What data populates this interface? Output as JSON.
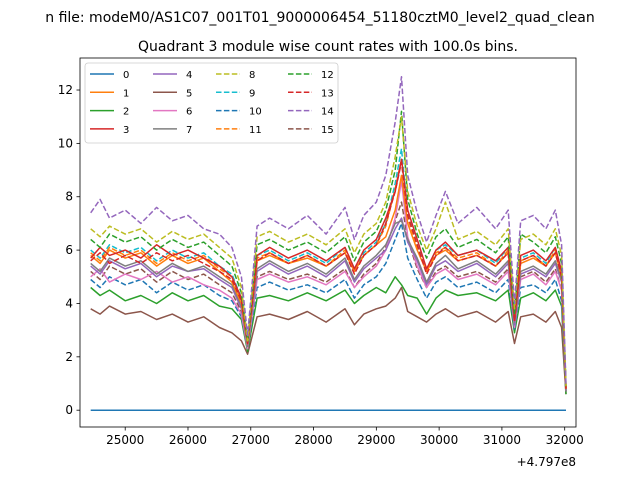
{
  "figure": {
    "suptitle": "n file: modeM0/AS1C07_001T01_9000006454_51180cztM0_level2_quad_clean",
    "title": "Quadrant 3 module wise count rates with 100.0s bins.",
    "offset_label": "+4.797e8"
  },
  "chart_data": {
    "type": "line",
    "title": "Quadrant 3 module wise count rates with 100.0s bins.",
    "xlabel": "",
    "ylabel": "",
    "x_offset": 479700000,
    "xlim": [
      24280,
      32180
    ],
    "ylim": [
      -0.63,
      13.2
    ],
    "xticks": [
      25000,
      26000,
      27000,
      28000,
      29000,
      30000,
      31000,
      32000
    ],
    "yticks": [
      0,
      2,
      4,
      6,
      8,
      10,
      12
    ],
    "grid": false,
    "legend": {
      "placement": "top-left",
      "ncol": 4
    },
    "series_styles": [
      {
        "name": "0",
        "color": "#1f77b4",
        "dash": "solid"
      },
      {
        "name": "1",
        "color": "#ff7f0e",
        "dash": "solid"
      },
      {
        "name": "2",
        "color": "#2ca02c",
        "dash": "solid"
      },
      {
        "name": "3",
        "color": "#d62728",
        "dash": "solid"
      },
      {
        "name": "4",
        "color": "#9467bd",
        "dash": "solid"
      },
      {
        "name": "5",
        "color": "#8c564b",
        "dash": "solid"
      },
      {
        "name": "6",
        "color": "#e377c2",
        "dash": "solid"
      },
      {
        "name": "7",
        "color": "#7f7f7f",
        "dash": "solid"
      },
      {
        "name": "8",
        "color": "#bcbd22",
        "dash": "dashed"
      },
      {
        "name": "9",
        "color": "#17becf",
        "dash": "dashed"
      },
      {
        "name": "10",
        "color": "#1f77b4",
        "dash": "dashed"
      },
      {
        "name": "11",
        "color": "#ff7f0e",
        "dash": "dashed"
      },
      {
        "name": "12",
        "color": "#2ca02c",
        "dash": "dashed"
      },
      {
        "name": "13",
        "color": "#d62728",
        "dash": "dashed"
      },
      {
        "name": "14",
        "color": "#9467bd",
        "dash": "dashed"
      },
      {
        "name": "15",
        "color": "#8c564b",
        "dash": "dashed"
      }
    ],
    "anchor_x": [
      24450,
      24600,
      24750,
      25000,
      25250,
      25500,
      25750,
      26000,
      26250,
      26500,
      26700,
      26850,
      26950,
      27100,
      27300,
      27600,
      27900,
      28200,
      28500,
      28650,
      28800,
      29000,
      29150,
      29300,
      29400,
      29500,
      29650,
      29800,
      29950,
      30100,
      30300,
      30600,
      30900,
      31100,
      31200,
      31300,
      31500,
      31700,
      31850,
      31950,
      32020
    ],
    "series": [
      {
        "name": "0",
        "y": [
          0,
          0,
          0,
          0,
          0,
          0,
          0,
          0,
          0,
          0,
          0,
          0,
          0,
          0,
          0,
          0,
          0,
          0,
          0,
          0,
          0,
          0,
          0,
          0,
          0,
          0,
          0,
          0,
          0,
          0,
          0,
          0,
          0,
          0,
          0,
          0,
          0,
          0,
          0,
          0,
          0
        ]
      },
      {
        "name": "1",
        "y": [
          5.8,
          5.5,
          6.0,
          5.7,
          5.9,
          5.4,
          5.8,
          5.5,
          5.7,
          5.2,
          4.8,
          4.0,
          2.5,
          5.6,
          5.8,
          5.5,
          5.7,
          5.4,
          5.9,
          5.2,
          5.8,
          6.2,
          6.5,
          7.5,
          8.8,
          7.0,
          6.0,
          5.2,
          5.8,
          6.0,
          5.6,
          5.8,
          5.4,
          5.9,
          3.5,
          5.5,
          5.7,
          5.4,
          5.9,
          5.0,
          0.8
        ]
      },
      {
        "name": "2",
        "y": [
          4.6,
          4.3,
          4.5,
          4.1,
          4.3,
          4.0,
          4.4,
          4.1,
          4.3,
          3.9,
          3.8,
          3.4,
          2.2,
          4.2,
          4.3,
          4.1,
          4.4,
          4.1,
          4.5,
          4.0,
          4.3,
          4.6,
          4.4,
          5.0,
          4.7,
          4.3,
          4.2,
          3.6,
          4.2,
          4.5,
          4.3,
          4.4,
          4.1,
          4.5,
          2.9,
          4.2,
          4.4,
          4.1,
          4.5,
          3.9,
          0.6
        ]
      },
      {
        "name": "3",
        "y": [
          5.7,
          6.1,
          5.8,
          6.0,
          5.7,
          6.2,
          5.8,
          6.0,
          5.7,
          5.4,
          5.0,
          4.2,
          2.6,
          5.8,
          6.1,
          5.7,
          6.0,
          5.6,
          6.1,
          5.3,
          6.0,
          6.4,
          7.2,
          8.2,
          9.4,
          7.5,
          6.4,
          5.3,
          6.0,
          6.3,
          5.8,
          6.0,
          5.6,
          6.1,
          3.4,
          5.8,
          6.0,
          5.6,
          6.1,
          5.2,
          0.8
        ]
      },
      {
        "name": "4",
        "y": [
          5.4,
          5.1,
          5.6,
          5.3,
          5.5,
          5.0,
          5.4,
          5.2,
          5.3,
          4.9,
          4.6,
          3.8,
          2.4,
          5.2,
          5.5,
          5.1,
          5.4,
          5.0,
          5.6,
          4.8,
          5.3,
          5.7,
          6.0,
          6.8,
          7.2,
          6.3,
          5.6,
          4.7,
          5.4,
          5.6,
          5.2,
          5.5,
          5.0,
          5.5,
          3.2,
          5.1,
          5.3,
          5.0,
          5.5,
          4.8,
          0.7
        ]
      },
      {
        "name": "5",
        "y": [
          3.8,
          3.6,
          3.9,
          3.6,
          3.7,
          3.4,
          3.6,
          3.3,
          3.5,
          3.1,
          2.9,
          2.6,
          2.1,
          3.5,
          3.6,
          3.4,
          3.7,
          3.3,
          3.8,
          3.2,
          3.6,
          3.8,
          3.9,
          4.2,
          4.6,
          3.7,
          3.5,
          3.3,
          3.6,
          3.8,
          3.5,
          3.7,
          3.3,
          3.7,
          2.5,
          3.5,
          3.6,
          3.3,
          3.7,
          3.1,
          0.6
        ]
      },
      {
        "name": "6",
        "y": [
          5.0,
          5.3,
          4.8,
          5.1,
          4.9,
          5.2,
          4.8,
          5.0,
          4.7,
          4.5,
          4.2,
          3.6,
          2.3,
          4.9,
          5.1,
          4.8,
          5.0,
          4.7,
          5.2,
          4.6,
          5.0,
          5.4,
          6.0,
          7.2,
          8.6,
          6.5,
          5.4,
          4.6,
          5.1,
          5.3,
          4.9,
          5.1,
          4.7,
          5.2,
          3.1,
          4.9,
          5.1,
          4.7,
          5.2,
          4.5,
          0.7
        ]
      },
      {
        "name": "7",
        "y": [
          5.5,
          5.2,
          5.7,
          5.4,
          5.6,
          5.1,
          5.5,
          5.2,
          5.4,
          5.0,
          4.7,
          3.9,
          2.4,
          5.3,
          5.6,
          5.2,
          5.5,
          5.1,
          5.7,
          4.9,
          5.4,
          5.8,
          6.2,
          7.0,
          7.1,
          6.4,
          5.7,
          4.8,
          5.5,
          5.8,
          5.3,
          5.6,
          5.1,
          5.6,
          3.3,
          5.2,
          5.4,
          5.1,
          5.6,
          4.9,
          0.7
        ]
      },
      {
        "name": "8",
        "y": [
          6.8,
          6.5,
          6.9,
          6.6,
          6.8,
          6.3,
          6.7,
          6.4,
          6.6,
          6.1,
          5.7,
          4.6,
          2.6,
          6.5,
          6.7,
          6.3,
          6.6,
          6.2,
          6.8,
          5.9,
          6.6,
          7.0,
          7.8,
          9.5,
          11.0,
          8.2,
          6.9,
          6.0,
          6.8,
          7.8,
          6.4,
          6.7,
          6.2,
          6.8,
          3.8,
          6.4,
          6.6,
          6.2,
          6.8,
          5.8,
          0.9
        ]
      },
      {
        "name": "9",
        "y": [
          6.0,
          5.7,
          6.2,
          5.9,
          6.1,
          5.6,
          6.0,
          5.7,
          5.9,
          5.4,
          5.1,
          4.2,
          2.5,
          5.8,
          6.0,
          5.6,
          5.9,
          5.5,
          6.1,
          5.3,
          5.9,
          6.3,
          7.0,
          8.5,
          9.8,
          7.4,
          6.2,
          5.3,
          6.0,
          6.2,
          5.8,
          6.0,
          5.5,
          6.1,
          3.5,
          5.7,
          5.9,
          5.5,
          6.1,
          5.2,
          0.8
        ]
      },
      {
        "name": "10",
        "y": [
          4.9,
          4.6,
          5.0,
          4.7,
          4.9,
          4.4,
          4.8,
          4.5,
          4.7,
          4.3,
          4.1,
          3.5,
          2.3,
          4.6,
          4.8,
          4.5,
          4.7,
          4.4,
          4.9,
          4.2,
          4.7,
          5.0,
          5.5,
          6.4,
          7.0,
          5.7,
          4.9,
          4.2,
          4.8,
          5.0,
          4.6,
          4.8,
          4.4,
          4.9,
          3.0,
          4.6,
          4.7,
          4.4,
          4.9,
          4.1,
          0.7
        ]
      },
      {
        "name": "11",
        "y": [
          5.9,
          5.6,
          6.1,
          5.8,
          6.0,
          5.5,
          5.9,
          5.6,
          5.8,
          5.3,
          5.0,
          4.1,
          2.5,
          5.7,
          5.9,
          5.5,
          5.8,
          5.4,
          6.0,
          5.2,
          5.8,
          6.2,
          6.9,
          8.3,
          9.4,
          7.2,
          6.1,
          5.2,
          5.9,
          6.1,
          5.7,
          5.9,
          5.4,
          6.0,
          3.4,
          5.6,
          5.8,
          5.4,
          6.0,
          5.1,
          0.8
        ]
      },
      {
        "name": "12",
        "y": [
          6.4,
          6.1,
          6.6,
          6.3,
          6.5,
          6.0,
          6.4,
          6.1,
          6.3,
          5.8,
          5.4,
          4.4,
          2.6,
          6.2,
          6.4,
          6.0,
          6.3,
          5.9,
          6.5,
          5.6,
          6.3,
          6.7,
          7.5,
          9.0,
          11.2,
          7.9,
          6.6,
          5.7,
          6.5,
          6.8,
          6.1,
          6.4,
          5.9,
          6.5,
          3.6,
          6.6,
          6.3,
          5.9,
          6.5,
          5.5,
          0.9
        ]
      },
      {
        "name": "13",
        "y": [
          5.6,
          5.9,
          5.5,
          5.8,
          5.5,
          5.9,
          5.6,
          5.8,
          5.5,
          5.2,
          4.9,
          4.1,
          2.5,
          5.6,
          5.9,
          5.5,
          5.8,
          5.4,
          5.9,
          5.1,
          5.8,
          6.2,
          7.0,
          8.2,
          9.3,
          7.3,
          6.2,
          5.1,
          5.8,
          6.1,
          5.6,
          5.8,
          5.4,
          5.9,
          3.3,
          5.6,
          5.8,
          5.4,
          5.9,
          5.0,
          0.8
        ]
      },
      {
        "name": "14",
        "y": [
          7.4,
          7.9,
          7.2,
          7.5,
          7.0,
          7.6,
          7.1,
          7.3,
          6.8,
          6.6,
          6.1,
          5.0,
          2.8,
          6.9,
          7.2,
          6.8,
          7.3,
          6.6,
          7.6,
          6.4,
          7.3,
          7.8,
          8.8,
          10.8,
          12.5,
          8.8,
          7.4,
          6.3,
          7.3,
          8.2,
          7.0,
          7.6,
          6.8,
          7.5,
          4.0,
          7.1,
          7.3,
          6.8,
          7.5,
          6.2,
          0.9
        ]
      },
      {
        "name": "15",
        "y": [
          5.2,
          4.9,
          5.4,
          5.1,
          5.3,
          4.8,
          5.2,
          4.9,
          5.1,
          4.7,
          4.4,
          3.7,
          2.4,
          5.0,
          5.2,
          4.9,
          5.1,
          4.8,
          5.3,
          4.6,
          5.1,
          5.5,
          6.1,
          7.1,
          7.8,
          6.4,
          5.3,
          4.6,
          5.2,
          5.4,
          5.0,
          5.2,
          4.8,
          5.3,
          3.2,
          5.0,
          5.2,
          4.8,
          5.3,
          4.5,
          0.7
        ]
      }
    ]
  }
}
